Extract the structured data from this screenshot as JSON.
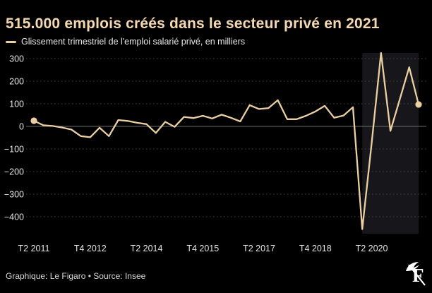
{
  "header": {
    "title": "515.000 emplois créés dans le secteur privé en 2021"
  },
  "legend": {
    "label": "Glissement trimestriel de l'emploi salarié privé, en milliers"
  },
  "footer": {
    "credit": "Graphique: Le Figaro • Source: Insee",
    "logo": "le-figaro-f-quill"
  },
  "colors": {
    "background": "#000000",
    "title": "#f4d8b0",
    "line": "#e9cfa2",
    "marker": "#e9cfa2",
    "grid": "#454545",
    "zero_line": "#6e6e6e",
    "axis_text": "#e3e3e3",
    "highlight_band": "#17171b",
    "legend_text": "#e8e8e8",
    "footer_text": "#d9d9d9",
    "logo": "#ffffff"
  },
  "chart_data": {
    "type": "line",
    "title": "515.000 emplois créés dans le secteur privé en 2021",
    "series_name": "Glissement trimestriel de l'emploi salarié privé, en milliers",
    "xlabel": "",
    "ylabel": "en milliers",
    "grid": "dotted horizontal",
    "legend_position": "top-left",
    "ylim": [
      -475,
      325
    ],
    "y_ticks": [
      300,
      200,
      100,
      0,
      -100,
      -200,
      -300,
      -400
    ],
    "x_ticks": [
      {
        "index": 0,
        "label": "T2 2011"
      },
      {
        "index": 6,
        "label": "T4 2012"
      },
      {
        "index": 12,
        "label": "T2 2014"
      },
      {
        "index": 18,
        "label": "T4 2015"
      },
      {
        "index": 24,
        "label": "T2 2017"
      },
      {
        "index": 30,
        "label": "T4 2018"
      },
      {
        "index": 36,
        "label": "T2 2020"
      }
    ],
    "quarters": [
      "T2 2011",
      "T3 2011",
      "T4 2011",
      "T1 2012",
      "T2 2012",
      "T3 2012",
      "T4 2012",
      "T1 2013",
      "T2 2013",
      "T3 2013",
      "T4 2013",
      "T1 2014",
      "T2 2014",
      "T3 2014",
      "T4 2014",
      "T1 2015",
      "T2 2015",
      "T3 2015",
      "T4 2015",
      "T1 2016",
      "T2 2016",
      "T3 2016",
      "T4 2016",
      "T1 2017",
      "T2 2017",
      "T3 2017",
      "T4 2017",
      "T1 2018",
      "T2 2018",
      "T3 2018",
      "T4 2018",
      "T1 2019",
      "T2 2019",
      "T3 2019",
      "T4 2019",
      "T1 2020",
      "T2 2020",
      "T3 2020",
      "T4 2020",
      "T1 2021",
      "T2 2021",
      "T3 2021"
    ],
    "values": [
      25,
      5,
      2,
      -5,
      -14,
      -43,
      -48,
      -6,
      -43,
      28,
      24,
      16,
      10,
      -29,
      20,
      -2,
      42,
      37,
      47,
      35,
      52,
      38,
      22,
      94,
      77,
      81,
      116,
      32,
      32,
      47,
      66,
      91,
      38,
      48,
      85,
      -455,
      -75,
      325,
      -20,
      120,
      262,
      97
    ],
    "marker_indices": [
      0,
      41
    ],
    "highlight_region": {
      "start_index": 35,
      "end_index": 41,
      "from": "T1 2020",
      "to": "T3 2021"
    }
  }
}
